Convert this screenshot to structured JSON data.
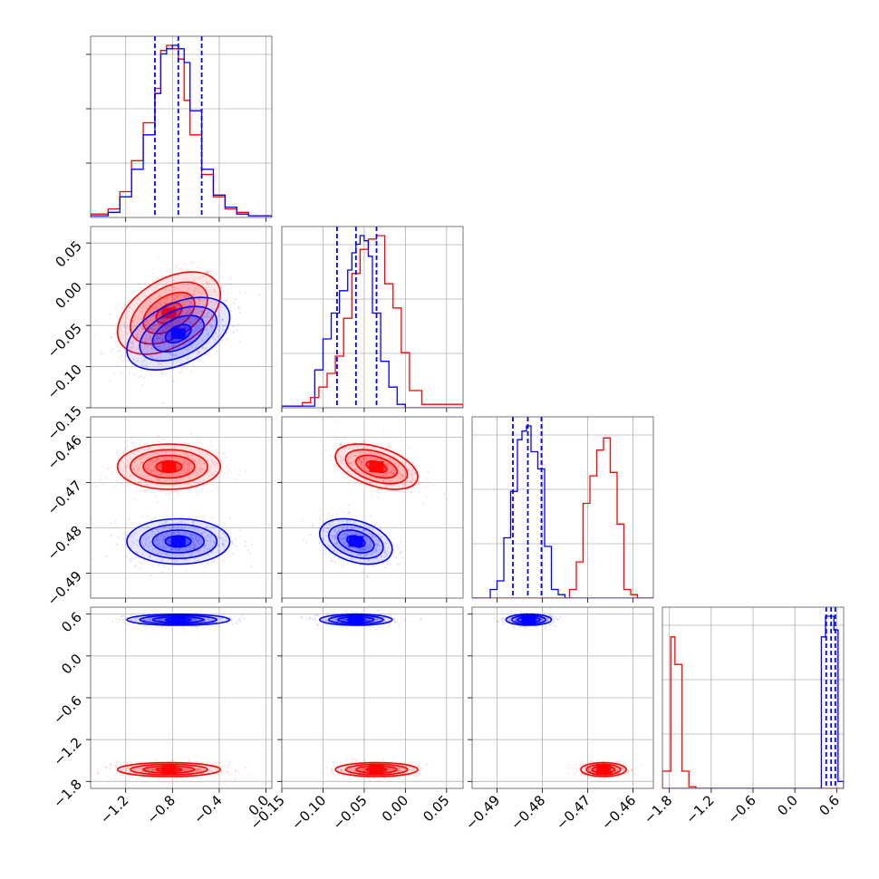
{
  "colors": {
    "series_a": "#ff0000",
    "series_b": "#0000ff",
    "grid": "#b0b0b0",
    "frame": "#000000"
  },
  "params": [
    {
      "range": [
        -1.5,
        0.05
      ],
      "ticks": [
        -1.2,
        -0.8,
        -0.4,
        0.0
      ],
      "tick_labels": [
        "−1.2",
        "−0.8",
        "−0.4",
        "0.0"
      ]
    },
    {
      "range": [
        -0.15,
        0.07
      ],
      "ticks": [
        -0.15,
        -0.1,
        -0.05,
        0.0,
        0.05
      ],
      "tick_labels": [
        "−0.15",
        "−0.10",
        "−0.05",
        "0.00",
        "0.05"
      ]
    },
    {
      "range": [
        -0.4955,
        -0.4555
      ],
      "ticks": [
        -0.49,
        -0.48,
        -0.47,
        -0.46
      ],
      "tick_labels": [
        "−0.49",
        "−0.48",
        "−0.47",
        "−0.46"
      ]
    },
    {
      "range": [
        -1.9,
        0.7
      ],
      "ticks": [
        -1.8,
        -1.2,
        -0.6,
        0.0,
        0.6
      ],
      "tick_labels": [
        "−1.8",
        "−1.2",
        "−0.6",
        "0.0",
        "0.6"
      ]
    }
  ],
  "chart_data": {
    "type": "corner",
    "grid": true,
    "series": [
      {
        "color": "red",
        "means": [
          -0.83,
          -0.035,
          -0.4665,
          -1.63
        ],
        "sds": [
          0.22,
          0.025,
          0.0025,
          0.05
        ],
        "correlations": {
          "0-1": 0.45,
          "1-2": -0.45,
          "0-2": 0.0,
          "0-3": 0.0,
          "1-3": 0.0,
          "2-3": 0.0
        },
        "hist": [
          {
            "edges": [
              -1.5,
              -1.35,
              -1.25,
              -1.15,
              -1.05,
              -0.95,
              -0.9,
              -0.85,
              -0.8,
              -0.75,
              -0.7,
              -0.65,
              -0.55,
              -0.45,
              -0.35,
              -0.25,
              -0.15,
              0.05
            ],
            "counts": [
              0.02,
              0.05,
              0.15,
              0.33,
              0.55,
              0.75,
              0.97,
              1.0,
              0.98,
              0.92,
              0.68,
              0.48,
              0.25,
              0.12,
              0.05,
              0.03,
              0.01
            ]
          },
          {
            "edges": [
              -0.15,
              -0.125,
              -0.115,
              -0.105,
              -0.095,
              -0.085,
              -0.075,
              -0.065,
              -0.055,
              -0.045,
              -0.035,
              -0.025,
              -0.015,
              -0.005,
              0.005,
              0.02,
              0.07
            ],
            "counts": [
              0.01,
              0.03,
              0.06,
              0.12,
              0.2,
              0.3,
              0.52,
              0.78,
              0.92,
              0.98,
              1.0,
              0.72,
              0.58,
              0.32,
              0.1,
              0.02
            ]
          },
          {
            "edges": [
              -0.4955,
              -0.474,
              -0.4725,
              -0.471,
              -0.4695,
              -0.468,
              -0.4665,
              -0.465,
              -0.4635,
              -0.462,
              -0.4605,
              -0.459,
              -0.4555
            ],
            "counts": [
              0.0,
              0.05,
              0.21,
              0.55,
              0.71,
              0.86,
              0.93,
              0.73,
              0.43,
              0.05,
              0.02,
              0.0
            ]
          },
          {
            "edges": [
              -1.9,
              -1.78,
              -1.72,
              -1.62,
              -1.52,
              -1.42,
              0.7
            ],
            "counts": [
              0.1,
              0.88,
              0.72,
              0.1,
              0.01,
              0.0
            ]
          }
        ]
      },
      {
        "color": "blue",
        "means": [
          -0.75,
          -0.06,
          -0.483,
          0.52
        ],
        "sds": [
          0.22,
          0.022,
          0.0025,
          0.04
        ],
        "quantiles": [
          [
            -0.95,
            -0.75,
            -0.55
          ],
          [
            -0.083,
            -0.06,
            -0.035
          ],
          [
            -0.4865,
            -0.4832,
            -0.4802
          ],
          [
            0.45,
            0.52,
            0.58
          ]
        ],
        "correlations": {
          "0-1": 0.45,
          "1-2": -0.35,
          "0-2": 0.0,
          "0-3": 0.0,
          "1-3": 0.0,
          "2-3": 0.0
        },
        "hist": [
          {
            "edges": [
              -1.5,
              -1.35,
              -1.25,
              -1.15,
              -1.05,
              -0.95,
              -0.9,
              -0.85,
              -0.8,
              -0.75,
              -0.7,
              -0.65,
              -0.55,
              -0.45,
              -0.35,
              -0.25,
              -0.15,
              0.05
            ],
            "counts": [
              0.01,
              0.03,
              0.12,
              0.28,
              0.48,
              0.72,
              0.95,
              0.98,
              1.0,
              0.98,
              0.9,
              0.62,
              0.28,
              0.13,
              0.06,
              0.02,
              0.01
            ]
          },
          {
            "edges": [
              -0.15,
              -0.11,
              -0.1,
              -0.09,
              -0.08,
              -0.07,
              -0.065,
              -0.06,
              -0.055,
              -0.05,
              -0.045,
              -0.04,
              -0.03,
              -0.02,
              -0.01,
              0.0,
              0.07
            ],
            "counts": [
              0.01,
              0.22,
              0.4,
              0.55,
              0.68,
              0.8,
              0.9,
              0.95,
              1.0,
              0.97,
              0.88,
              0.55,
              0.27,
              0.12,
              0.02,
              0.0
            ]
          },
          {
            "edges": [
              -0.4955,
              -0.4915,
              -0.49,
              -0.4885,
              -0.487,
              -0.4855,
              -0.4845,
              -0.4835,
              -0.4825,
              -0.481,
              -0.4795,
              -0.478,
              -0.4765,
              -0.475,
              -0.4555
            ],
            "counts": [
              0.0,
              0.05,
              0.1,
              0.35,
              0.62,
              0.92,
              0.97,
              1.0,
              0.85,
              0.75,
              0.3,
              0.05,
              0.02,
              0.0
            ]
          },
          {
            "edges": [
              -1.9,
              0.38,
              0.44,
              0.5,
              0.56,
              0.62,
              0.7
            ],
            "counts": [
              0.0,
              0.88,
              1.0,
              1.0,
              0.92,
              0.04
            ]
          }
        ]
      }
    ]
  }
}
